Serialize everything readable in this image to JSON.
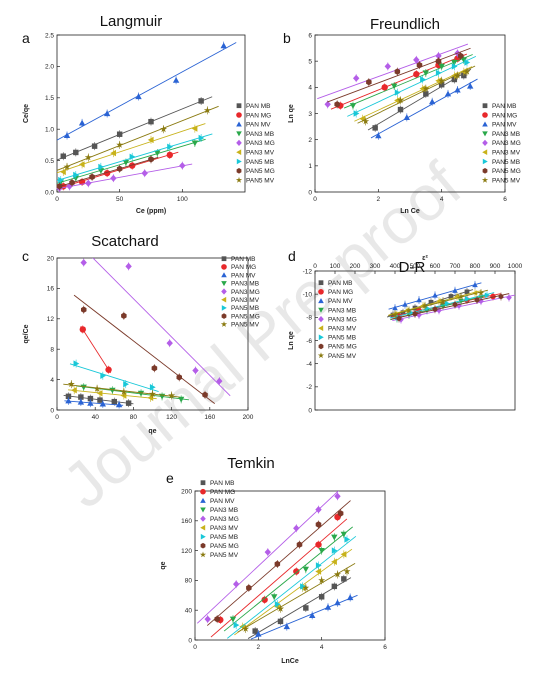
{
  "figure": {
    "watermark": "Journal Pre-proof",
    "panels": [
      {
        "letter": "a",
        "title": "Langmuir"
      },
      {
        "letter": "b",
        "title": "Freundlich"
      },
      {
        "letter": "c",
        "title": "Scatchard"
      },
      {
        "letter": "d",
        "title": "D-R"
      },
      {
        "letter": "e",
        "title": "Temkin"
      }
    ]
  },
  "legend_series": [
    {
      "name": "PAN MB",
      "color": "#555555",
      "marker": "square"
    },
    {
      "name": "PAN MG",
      "color": "#e8282b",
      "marker": "circle"
    },
    {
      "name": "PAN MV",
      "color": "#2a63d4",
      "marker": "triangle-up"
    },
    {
      "name": "PAN3 MB",
      "color": "#2aa84a",
      "marker": "triangle-down"
    },
    {
      "name": "PAN3 MG",
      "color": "#b45ee8",
      "marker": "diamond"
    },
    {
      "name": "PAN3 MV",
      "color": "#c8b21a",
      "marker": "triangle-left"
    },
    {
      "name": "PAN5 MB",
      "color": "#19c8d8",
      "marker": "triangle-right"
    },
    {
      "name": "PAN5 MG",
      "color": "#7b3a2a",
      "marker": "hexagon"
    },
    {
      "name": "PAN5 MV",
      "color": "#8a7a10",
      "marker": "star"
    }
  ],
  "chart_data": [
    {
      "id": "a",
      "type": "scatter",
      "title": "Langmuir",
      "xlabel": "Ce (ppm)",
      "ylabel": "Ce/qe",
      "xlim": [
        0,
        150
      ],
      "ylim": [
        0,
        2.5
      ],
      "xticks": [
        0,
        50,
        100
      ],
      "yticks": [
        0.0,
        0.5,
        1.0,
        1.5,
        2.0,
        2.5
      ],
      "fit_lines": true,
      "legend_position": "right",
      "series": [
        {
          "name": "PAN MB",
          "x": [
            5,
            15,
            30,
            50,
            75,
            115
          ],
          "y": [
            0.57,
            0.63,
            0.73,
            0.92,
            1.12,
            1.45
          ]
        },
        {
          "name": "PAN MG",
          "x": [
            5,
            20,
            40,
            60,
            90
          ],
          "y": [
            0.09,
            0.16,
            0.3,
            0.42,
            0.59
          ]
        },
        {
          "name": "PAN MV",
          "x": [
            8,
            20,
            40,
            65,
            95,
            133
          ],
          "y": [
            0.9,
            1.1,
            1.25,
            1.52,
            1.78,
            2.33
          ]
        },
        {
          "name": "PAN3 MB",
          "x": [
            3,
            15,
            35,
            55,
            80,
            110
          ],
          "y": [
            0.16,
            0.22,
            0.34,
            0.47,
            0.62,
            0.78
          ]
        },
        {
          "name": "PAN3 MG",
          "x": [
            2,
            10,
            25,
            45,
            70,
            100
          ],
          "y": [
            0.06,
            0.09,
            0.14,
            0.22,
            0.3,
            0.42
          ]
        },
        {
          "name": "PAN3 MV",
          "x": [
            5,
            20,
            45,
            75,
            110
          ],
          "y": [
            0.32,
            0.44,
            0.62,
            0.83,
            1.01
          ]
        },
        {
          "name": "PAN5 MB",
          "x": [
            3,
            15,
            35,
            60,
            90,
            115
          ],
          "y": [
            0.19,
            0.27,
            0.4,
            0.56,
            0.72,
            0.86
          ]
        },
        {
          "name": "PAN5 MG",
          "x": [
            2,
            12,
            28,
            50,
            75
          ],
          "y": [
            0.09,
            0.15,
            0.24,
            0.37,
            0.52
          ]
        },
        {
          "name": "PAN5 MV",
          "x": [
            8,
            25,
            50,
            85,
            120
          ],
          "y": [
            0.4,
            0.55,
            0.75,
            1.0,
            1.3
          ]
        }
      ]
    },
    {
      "id": "b",
      "type": "scatter",
      "title": "Freundlich",
      "xlabel": "Ln Ce",
      "ylabel": "Ln qe",
      "xlim": [
        0,
        6
      ],
      "ylim": [
        0,
        6
      ],
      "xticks": [
        0,
        2,
        4,
        6
      ],
      "yticks": [
        0,
        1,
        2,
        3,
        4,
        5,
        6
      ],
      "fit_lines": true,
      "legend_position": "right",
      "series": [
        {
          "name": "PAN MB",
          "x": [
            1.9,
            2.7,
            3.5,
            4.0,
            4.4,
            4.7
          ],
          "y": [
            2.45,
            3.15,
            3.75,
            4.1,
            4.3,
            4.45
          ]
        },
        {
          "name": "PAN MG",
          "x": [
            0.8,
            2.2,
            3.2,
            3.9,
            4.5
          ],
          "y": [
            3.3,
            4.0,
            4.5,
            4.85,
            5.1
          ]
        },
        {
          "name": "PAN MV",
          "x": [
            2.0,
            2.9,
            3.7,
            4.2,
            4.5,
            4.9
          ],
          "y": [
            2.15,
            2.85,
            3.45,
            3.75,
            3.9,
            4.05
          ]
        },
        {
          "name": "PAN3 MB",
          "x": [
            1.2,
            2.5,
            3.5,
            4.0,
            4.4,
            4.7
          ],
          "y": [
            3.3,
            4.05,
            4.55,
            4.8,
            4.95,
            5.05
          ]
        },
        {
          "name": "PAN3 MG",
          "x": [
            0.4,
            1.3,
            2.3,
            3.2,
            3.9,
            4.5
          ],
          "y": [
            3.35,
            4.35,
            4.8,
            5.05,
            5.2,
            5.3
          ]
        },
        {
          "name": "PAN3 MV",
          "x": [
            1.5,
            2.6,
            3.4,
            3.9,
            4.4,
            4.7
          ],
          "y": [
            2.8,
            3.5,
            3.95,
            4.25,
            4.45,
            4.6
          ]
        },
        {
          "name": "PAN5 MB",
          "x": [
            1.3,
            2.6,
            3.4,
            3.9,
            4.4,
            4.8
          ],
          "y": [
            3.0,
            3.8,
            4.3,
            4.55,
            4.8,
            4.95
          ]
        },
        {
          "name": "PAN5 MG",
          "x": [
            0.7,
            1.7,
            2.6,
            3.3,
            3.9,
            4.6
          ],
          "y": [
            3.35,
            4.2,
            4.6,
            4.85,
            5.0,
            5.2
          ]
        },
        {
          "name": "PAN5 MV",
          "x": [
            1.6,
            2.7,
            3.5,
            4.0,
            4.5,
            4.8
          ],
          "y": [
            2.7,
            3.5,
            3.95,
            4.25,
            4.45,
            4.6
          ]
        }
      ]
    },
    {
      "id": "c",
      "type": "scatter",
      "title": "Scatchard",
      "xlabel": "qe",
      "ylabel": "qe/Ce",
      "xlim": [
        0,
        200
      ],
      "ylim": [
        0,
        20
      ],
      "xticks": [
        0,
        40,
        80,
        120,
        160,
        200
      ],
      "yticks": [
        0,
        4,
        8,
        12,
        16,
        20
      ],
      "fit_lines": true,
      "legend_position": "right",
      "series": [
        {
          "name": "PAN MB",
          "x": [
            12,
            25,
            35,
            45,
            60,
            75
          ],
          "y": [
            1.8,
            1.7,
            1.5,
            1.3,
            1.1,
            0.9
          ]
        },
        {
          "name": "PAN MG",
          "x": [
            27,
            54
          ],
          "y": [
            10.6,
            5.3
          ]
        },
        {
          "name": "PAN MV",
          "x": [
            12,
            25,
            35,
            48,
            65
          ],
          "y": [
            1.2,
            1.05,
            0.9,
            0.8,
            0.7
          ]
        },
        {
          "name": "PAN3 MB",
          "x": [
            28,
            58,
            88,
            110,
            130
          ],
          "y": [
            3.0,
            2.6,
            2.2,
            1.8,
            1.4
          ]
        },
        {
          "name": "PAN3 MG",
          "x": [
            28,
            75,
            118,
            145,
            170
          ],
          "y": [
            19.4,
            18.9,
            8.8,
            5.2,
            3.8
          ]
        },
        {
          "name": "PAN3 MV",
          "x": [
            18,
            45,
            70,
            98
          ],
          "y": [
            2.6,
            2.2,
            1.9,
            1.6
          ]
        },
        {
          "name": "PAN5 MB",
          "x": [
            20,
            48,
            72,
            100
          ],
          "y": [
            6.1,
            4.5,
            3.4,
            3.0
          ]
        },
        {
          "name": "PAN5 MG",
          "x": [
            28,
            70,
            102,
            128,
            155
          ],
          "y": [
            13.2,
            12.4,
            5.5,
            4.3,
            2.0
          ]
        },
        {
          "name": "PAN5 MV",
          "x": [
            15,
            42,
            70,
            100,
            120
          ],
          "y": [
            3.4,
            2.8,
            2.4,
            2.1,
            1.9
          ]
        }
      ]
    },
    {
      "id": "d",
      "type": "scatter",
      "title": "D-R",
      "xlabel": "ε²",
      "ylabel": "Ln qe",
      "xlim": [
        0,
        1000
      ],
      "ylim": [
        0,
        -12
      ],
      "xticks": [
        0,
        100,
        200,
        300,
        400,
        500,
        600,
        700,
        800,
        900,
        1000
      ],
      "yticks": [
        0,
        -2,
        -4,
        -6,
        -8,
        -10,
        -12
      ],
      "fit_lines": true,
      "legend_position": "left",
      "series": [
        {
          "name": "PAN MB",
          "x": [
            390,
            440,
            500,
            580,
            680,
            760
          ],
          "y": [
            -8.2,
            -8.4,
            -8.8,
            -9.3,
            -9.8,
            -10.2
          ]
        },
        {
          "name": "PAN MG",
          "x": [
            420,
            520,
            640,
            760,
            890
          ],
          "y": [
            -8.1,
            -8.6,
            -9.1,
            -9.5,
            -9.8
          ]
        },
        {
          "name": "PAN MV",
          "x": [
            400,
            450,
            520,
            600,
            700,
            800
          ],
          "y": [
            -8.8,
            -9.1,
            -9.5,
            -9.9,
            -10.3,
            -10.8
          ]
        },
        {
          "name": "PAN3 MB",
          "x": [
            410,
            470,
            560,
            640,
            730,
            830
          ],
          "y": [
            -7.9,
            -8.2,
            -8.6,
            -9.0,
            -9.4,
            -9.7
          ]
        },
        {
          "name": "PAN3 MG",
          "x": [
            430,
            520,
            620,
            720,
            830,
            970
          ],
          "y": [
            -7.8,
            -8.2,
            -8.6,
            -9.0,
            -9.4,
            -9.7
          ]
        },
        {
          "name": "PAN3 MV",
          "x": [
            400,
            460,
            540,
            620,
            710,
            800
          ],
          "y": [
            -8.3,
            -8.6,
            -9.0,
            -9.4,
            -9.8,
            -10.1
          ]
        },
        {
          "name": "PAN5 MB",
          "x": [
            410,
            480,
            560,
            660,
            760,
            860
          ],
          "y": [
            -8.0,
            -8.4,
            -8.8,
            -9.2,
            -9.6,
            -9.9
          ]
        },
        {
          "name": "PAN5 MG",
          "x": [
            420,
            500,
            600,
            700,
            810,
            930
          ],
          "y": [
            -7.9,
            -8.3,
            -8.7,
            -9.1,
            -9.5,
            -9.8
          ]
        },
        {
          "name": "PAN5 MV",
          "x": [
            400,
            470,
            550,
            640,
            730,
            830
          ],
          "y": [
            -8.2,
            -8.6,
            -9.0,
            -9.4,
            -9.8,
            -10.1
          ]
        }
      ]
    },
    {
      "id": "e",
      "type": "scatter",
      "title": "Temkin",
      "xlabel": "LnCe",
      "ylabel": "qe",
      "xlim": [
        0,
        6
      ],
      "ylim": [
        0,
        200
      ],
      "xticks": [
        0,
        2,
        4,
        6
      ],
      "yticks": [
        0,
        40,
        80,
        120,
        160,
        200
      ],
      "fit_lines": true,
      "legend_position": "left",
      "series": [
        {
          "name": "PAN MB",
          "x": [
            1.9,
            2.7,
            3.5,
            4.0,
            4.4,
            4.7
          ],
          "y": [
            12,
            25,
            43,
            58,
            72,
            82
          ]
        },
        {
          "name": "PAN MG",
          "x": [
            0.8,
            2.2,
            3.2,
            3.9,
            4.5
          ],
          "y": [
            27,
            54,
            92,
            128,
            165
          ]
        },
        {
          "name": "PAN MV",
          "x": [
            2.0,
            2.9,
            3.7,
            4.2,
            4.5,
            4.9
          ],
          "y": [
            8,
            18,
            33,
            44,
            50,
            57
          ]
        },
        {
          "name": "PAN3 MB",
          "x": [
            1.2,
            2.5,
            3.5,
            4.0,
            4.4,
            4.7
          ],
          "y": [
            28,
            58,
            95,
            120,
            138,
            142
          ]
        },
        {
          "name": "PAN3 MG",
          "x": [
            0.4,
            1.3,
            2.3,
            3.2,
            3.9,
            4.5
          ],
          "y": [
            28,
            75,
            118,
            150,
            175,
            193
          ]
        },
        {
          "name": "PAN3 MV",
          "x": [
            1.5,
            2.6,
            3.4,
            3.9,
            4.4,
            4.7
          ],
          "y": [
            18,
            45,
            70,
            92,
            105,
            115
          ]
        },
        {
          "name": "PAN5 MB",
          "x": [
            1.3,
            2.6,
            3.4,
            3.9,
            4.4,
            4.8
          ],
          "y": [
            20,
            48,
            72,
            100,
            120,
            135
          ]
        },
        {
          "name": "PAN5 MG",
          "x": [
            0.7,
            1.7,
            2.6,
            3.3,
            3.9,
            4.6
          ],
          "y": [
            28,
            70,
            102,
            128,
            155,
            170
          ]
        },
        {
          "name": "PAN5 MV",
          "x": [
            1.6,
            2.7,
            3.5,
            4.0,
            4.5,
            4.8
          ],
          "y": [
            15,
            42,
            70,
            80,
            88,
            92
          ]
        }
      ]
    }
  ]
}
